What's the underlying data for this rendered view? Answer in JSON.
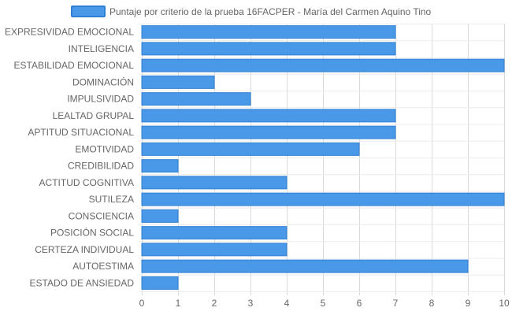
{
  "chart_data": {
    "type": "bar",
    "orientation": "horizontal",
    "series": [
      {
        "name": "Puntaje por criterio de la prueba 16FACPER - María del Carmen Aquino Tino",
        "color": "#4a98e8",
        "border_color": "#2f7fd4",
        "values": [
          7,
          7,
          10,
          2,
          3,
          7,
          7,
          6,
          1,
          4,
          10,
          1,
          4,
          4,
          9,
          1
        ]
      }
    ],
    "categories": [
      "EXPRESIVIDAD EMOCIONAL",
      "INTELIGENCIA",
      "ESTABILIDAD EMOCIONAL",
      "DOMINACIÓN",
      "IMPULSIVIDAD",
      "LEALTAD GRUPAL",
      "APTITUD SITUACIONAL",
      "EMOTIVIDAD",
      "CREDIBILIDAD",
      "ACTITUD COGNITIVA",
      "SUTILEZA",
      "CONSCIENCIA",
      "POSICIÓN SOCIAL",
      "CERTEZA INDIVIDUAL",
      "AUTOESTIMA",
      "ESTADO DE ANSIEDAD"
    ],
    "xlim": [
      0,
      10
    ],
    "xticks": [
      0,
      1,
      2,
      3,
      4,
      5,
      6,
      7,
      8,
      9,
      10
    ],
    "grid": true,
    "legend_position": "top"
  }
}
